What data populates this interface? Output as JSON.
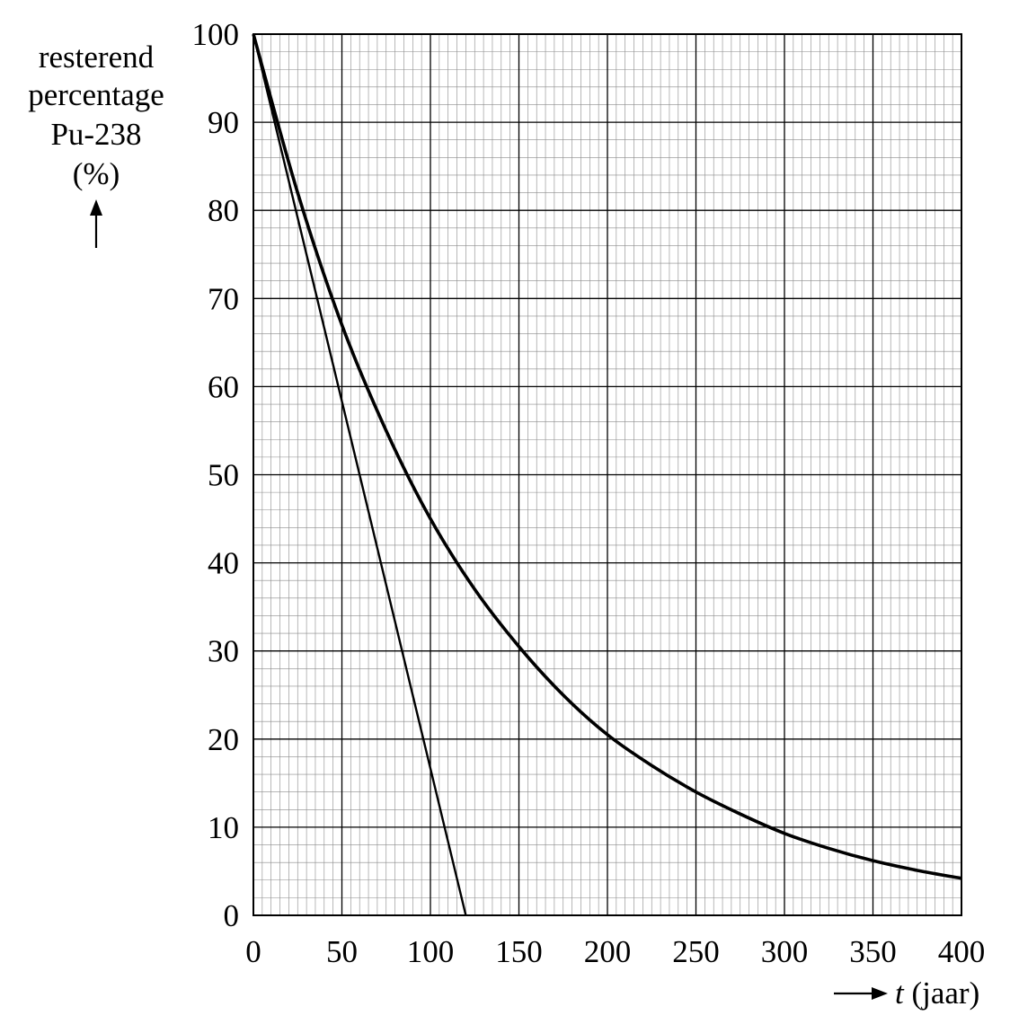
{
  "chart_data": {
    "type": "line",
    "xlabel_italic": "t",
    "xlabel_rest": " (jaar)",
    "ylabel_lines": [
      "resterend",
      "percentage",
      "Pu-238",
      "(%)"
    ],
    "xlim": [
      0,
      400
    ],
    "ylim": [
      0,
      100
    ],
    "x_ticks": [
      0,
      50,
      100,
      150,
      200,
      250,
      300,
      350,
      400
    ],
    "x_tick_labels": [
      "0",
      "50",
      "100",
      "150",
      "200",
      "250",
      "300",
      "350",
      "400"
    ],
    "y_ticks": [
      0,
      10,
      20,
      30,
      40,
      50,
      60,
      70,
      80,
      90,
      100
    ],
    "y_tick_labels": [
      "0",
      "10",
      "20",
      "30",
      "40",
      "50",
      "60",
      "70",
      "80",
      "90",
      "100"
    ],
    "grid": true,
    "series": [
      {
        "kind": "decay-curve",
        "x": [
          0,
          25,
          50,
          75,
          100,
          125,
          150,
          175,
          200,
          225,
          250,
          275,
          300,
          325,
          350,
          375,
          400
        ],
        "y": [
          100,
          82,
          67,
          55,
          45,
          37,
          30.5,
          25,
          20.5,
          17,
          14,
          11.5,
          9.3,
          7.6,
          6.2,
          5.1,
          4.2
        ]
      },
      {
        "kind": "tangent-line",
        "x": [
          0,
          120
        ],
        "y": [
          100,
          0
        ]
      }
    ]
  }
}
